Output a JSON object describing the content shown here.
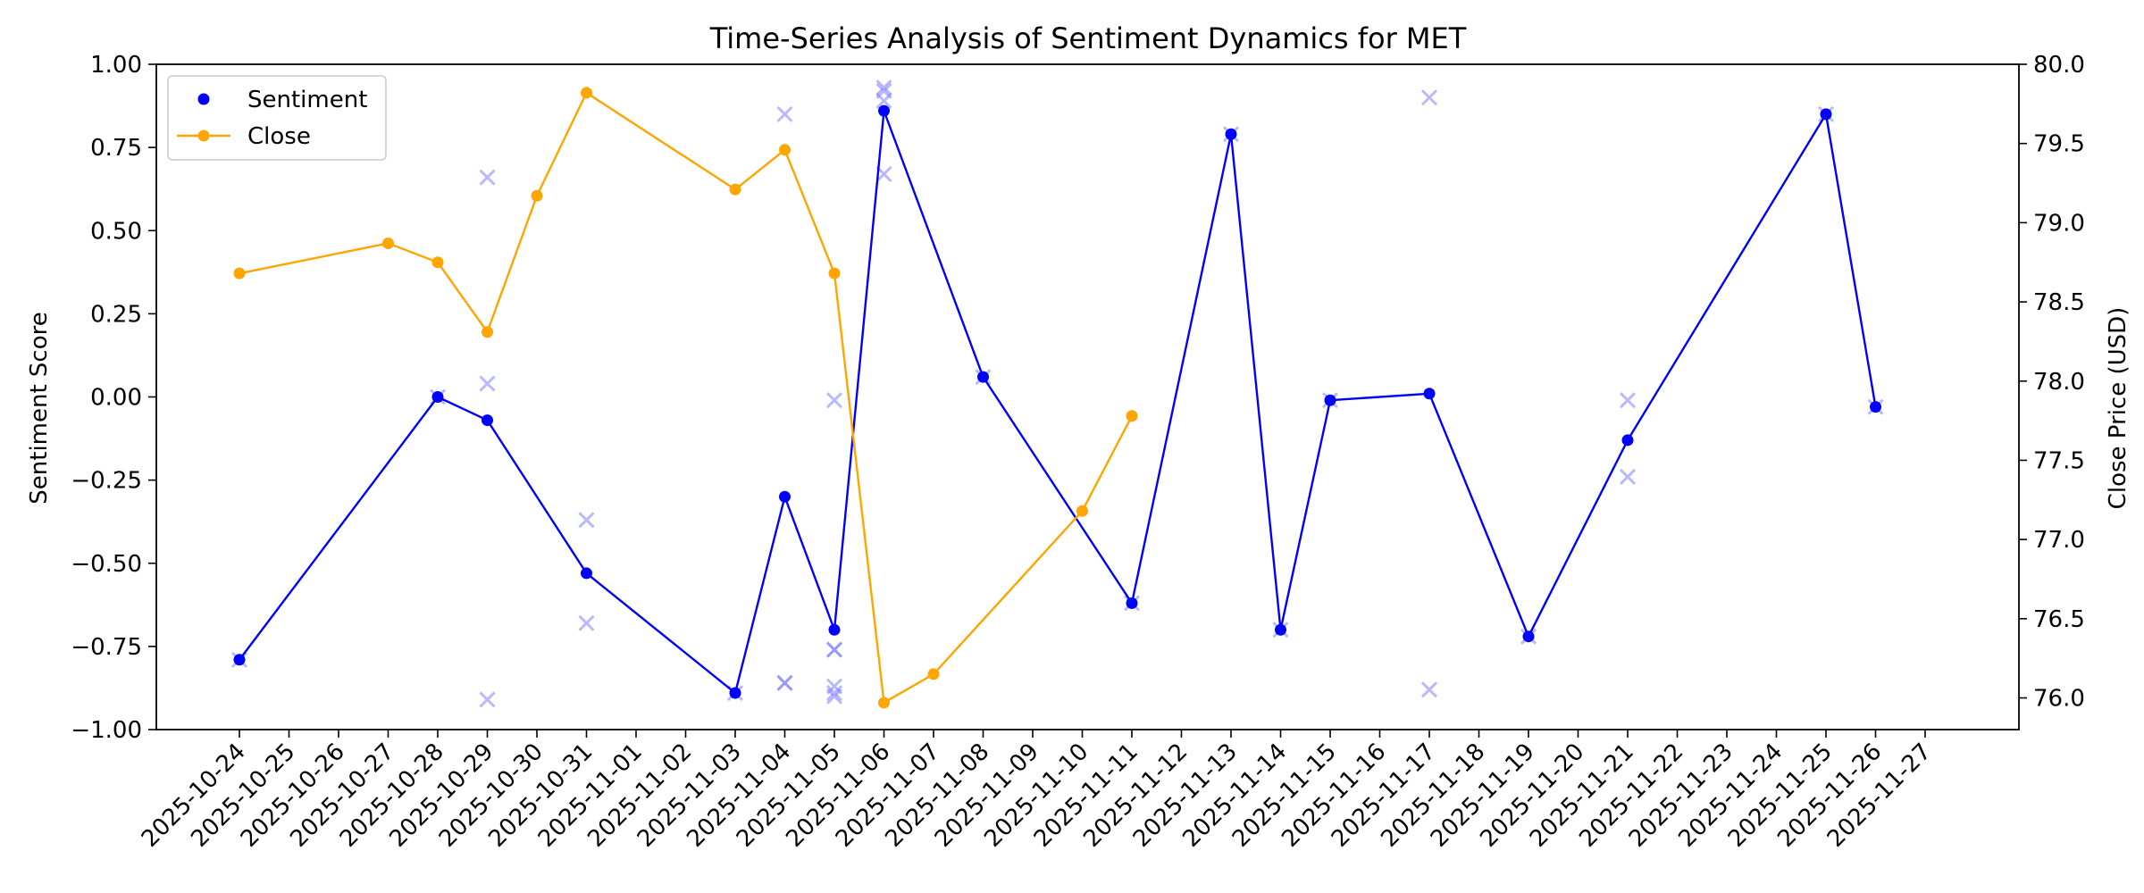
{
  "chart_data": {
    "type": "line",
    "title": "Time-Series Analysis of Sentiment Dynamics for MET",
    "xlabel": "",
    "ylabel": "Sentiment Score",
    "y2label": "Close Price (USD)",
    "ylim": [
      -1.0,
      1.0
    ],
    "y2lim": [
      75.8,
      80.0
    ],
    "y_ticks": [
      "−1.00",
      "−0.75",
      "−0.50",
      "−0.25",
      "0.00",
      "0.25",
      "0.50",
      "0.75",
      "1.00"
    ],
    "y2_ticks": [
      "76.0",
      "76.5",
      "77.0",
      "77.5",
      "78.0",
      "78.5",
      "79.0",
      "79.5",
      "80.0"
    ],
    "x_ticks": [
      "2025-10-24",
      "2025-10-25",
      "2025-10-26",
      "2025-10-27",
      "2025-10-28",
      "2025-10-29",
      "2025-10-30",
      "2025-10-31",
      "2025-11-01",
      "2025-11-02",
      "2025-11-03",
      "2025-11-04",
      "2025-11-05",
      "2025-11-06",
      "2025-11-07",
      "2025-11-08",
      "2025-11-09",
      "2025-11-10",
      "2025-11-11",
      "2025-11-12",
      "2025-11-13",
      "2025-11-14",
      "2025-11-15",
      "2025-11-16",
      "2025-11-17",
      "2025-11-18",
      "2025-11-19",
      "2025-11-20",
      "2025-11-21",
      "2025-11-22",
      "2025-11-23",
      "2025-11-24",
      "2025-11-25",
      "2025-11-26",
      "2025-11-27"
    ],
    "legend_position": "upper-left",
    "grid": false,
    "series": [
      {
        "name": "Sentiment",
        "color": "#0000ff",
        "axis": "left",
        "points": [
          {
            "x": "2025-10-24",
            "y": -0.79
          },
          {
            "x": "2025-10-28",
            "y": 0.0
          },
          {
            "x": "2025-10-29",
            "y": -0.07
          },
          {
            "x": "2025-10-31",
            "y": -0.53
          },
          {
            "x": "2025-11-03",
            "y": -0.89
          },
          {
            "x": "2025-11-04",
            "y": -0.3
          },
          {
            "x": "2025-11-05",
            "y": -0.7
          },
          {
            "x": "2025-11-06",
            "y": 0.86
          },
          {
            "x": "2025-11-08",
            "y": 0.06
          },
          {
            "x": "2025-11-11",
            "y": -0.62
          },
          {
            "x": "2025-11-13",
            "y": 0.79
          },
          {
            "x": "2025-11-14",
            "y": -0.7
          },
          {
            "x": "2025-11-15",
            "y": -0.01
          },
          {
            "x": "2025-11-17",
            "y": 0.01
          },
          {
            "x": "2025-11-19",
            "y": -0.72
          },
          {
            "x": "2025-11-21",
            "y": -0.13
          },
          {
            "x": "2025-11-25",
            "y": 0.85
          },
          {
            "x": "2025-11-26",
            "y": -0.03
          }
        ]
      },
      {
        "name": "Close",
        "color": "#ffa500",
        "axis": "right",
        "points": [
          {
            "x": "2025-10-24",
            "y": 78.68
          },
          {
            "x": "2025-10-27",
            "y": 78.87
          },
          {
            "x": "2025-10-28",
            "y": 78.75
          },
          {
            "x": "2025-10-29",
            "y": 78.31
          },
          {
            "x": "2025-10-30",
            "y": 79.17
          },
          {
            "x": "2025-10-31",
            "y": 79.82
          },
          {
            "x": "2025-11-03",
            "y": 79.21
          },
          {
            "x": "2025-11-04",
            "y": 79.46
          },
          {
            "x": "2025-11-05",
            "y": 78.68
          },
          {
            "x": "2025-11-06",
            "y": 75.97
          },
          {
            "x": "2025-11-07",
            "y": 76.15
          },
          {
            "x": "2025-11-10",
            "y": 77.18
          },
          {
            "x": "2025-11-11",
            "y": 77.78
          }
        ]
      }
    ],
    "individual_scores": {
      "marker": "x",
      "color": "#8080ff",
      "points": [
        {
          "x": "2025-10-24",
          "y": -0.79
        },
        {
          "x": "2025-10-28",
          "y": 0.0
        },
        {
          "x": "2025-10-29",
          "y": 0.66
        },
        {
          "x": "2025-10-29",
          "y": 0.04
        },
        {
          "x": "2025-10-29",
          "y": -0.91
        },
        {
          "x": "2025-10-31",
          "y": -0.37
        },
        {
          "x": "2025-10-31",
          "y": -0.68
        },
        {
          "x": "2025-11-03",
          "y": -0.89
        },
        {
          "x": "2025-11-04",
          "y": 0.85
        },
        {
          "x": "2025-11-04",
          "y": -0.86
        },
        {
          "x": "2025-11-04",
          "y": -0.86
        },
        {
          "x": "2025-11-05",
          "y": -0.01
        },
        {
          "x": "2025-11-05",
          "y": -0.76
        },
        {
          "x": "2025-11-05",
          "y": -0.76
        },
        {
          "x": "2025-11-05",
          "y": -0.87
        },
        {
          "x": "2025-11-05",
          "y": -0.89
        },
        {
          "x": "2025-11-05",
          "y": -0.9
        },
        {
          "x": "2025-11-06",
          "y": 0.93
        },
        {
          "x": "2025-11-06",
          "y": 0.92
        },
        {
          "x": "2025-11-06",
          "y": 0.89
        },
        {
          "x": "2025-11-06",
          "y": 0.67
        },
        {
          "x": "2025-11-08",
          "y": 0.06
        },
        {
          "x": "2025-11-11",
          "y": -0.62
        },
        {
          "x": "2025-11-13",
          "y": 0.79
        },
        {
          "x": "2025-11-14",
          "y": -0.7
        },
        {
          "x": "2025-11-15",
          "y": -0.01
        },
        {
          "x": "2025-11-17",
          "y": 0.9
        },
        {
          "x": "2025-11-17",
          "y": -0.88
        },
        {
          "x": "2025-11-19",
          "y": -0.72
        },
        {
          "x": "2025-11-21",
          "y": -0.01
        },
        {
          "x": "2025-11-21",
          "y": -0.24
        },
        {
          "x": "2025-11-25",
          "y": 0.85
        },
        {
          "x": "2025-11-26",
          "y": -0.03
        }
      ]
    }
  }
}
